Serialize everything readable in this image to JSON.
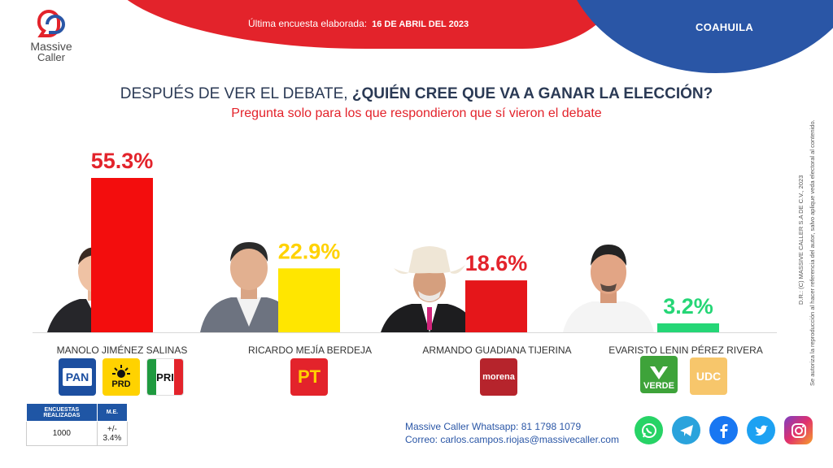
{
  "header": {
    "survey_label": "Última encuesta elaborada:",
    "survey_date": "16 DE ABRIL DEL 2023",
    "state": "COAHUILA"
  },
  "logo": {
    "line1": "Massive",
    "line2": "Caller"
  },
  "question": {
    "lead": "DESPUÉS DE VER EL DEBATE,",
    "main": "¿QUIÉN CREE QUE VA A GANAR LA ELECCIÓN?",
    "sub": "Pregunta solo para los que respondieron que sí vieron el debate"
  },
  "chart_data": {
    "type": "bar",
    "categories": [
      "MANOLO JIMÉNEZ SALINAS",
      "RICARDO MEJÍA BERDEJA",
      "ARMANDO GUADIANA TIJERINA",
      "EVARISTO LENIN PÉREZ RIVERA"
    ],
    "values": [
      55.3,
      22.9,
      18.6,
      3.2
    ],
    "labels": [
      "55.3%",
      "22.9%",
      "18.6%",
      "3.2%"
    ],
    "colors": [
      "#f30d0d",
      "#ffe600",
      "#e5161a",
      "#25d676"
    ],
    "label_colors": [
      "#e3232b",
      "#ffd200",
      "#e3232b",
      "#25d676"
    ],
    "ylim": [
      0,
      60
    ]
  },
  "parties": {
    "c1": [
      "PAN",
      "PRD",
      "PRI"
    ],
    "c2": [
      "PT"
    ],
    "c3": [
      "morena"
    ],
    "c4": [
      "VERDE",
      "UDC"
    ]
  },
  "table": {
    "h1": "ENCUESTAS REALIZADAS",
    "h2": "M.E.",
    "v1": "1000",
    "v2": "+/- 3.4%"
  },
  "contact": {
    "whatsapp_label": "Massive Caller Whatsapp:",
    "whatsapp_number": "81 1798 1079",
    "email_label": "Correo:",
    "email": "carlos.campos.riojas@massivecaller.com"
  },
  "socials": [
    "whatsapp-icon",
    "telegram-icon",
    "facebook-icon",
    "twitter-icon",
    "instagram-icon"
  ],
  "legal": {
    "line1": "D.R.: (C) MASSIVE CALLER S.A DE C.V., 2023",
    "line2": "Se autoriza la reproducción al hacer referencia del autor, salvo aplique veda electoral al contenido."
  }
}
